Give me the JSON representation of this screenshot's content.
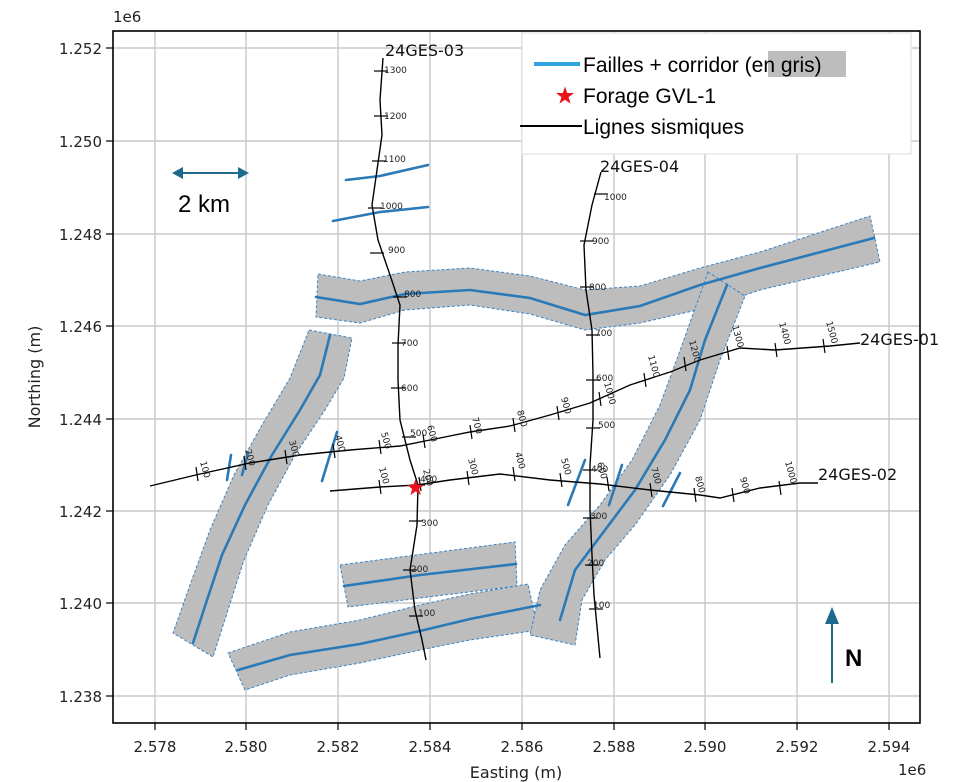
{
  "axes": {
    "x_label": "Easting (m)",
    "y_label": "Northing (m)",
    "x_multiplier": "1e6",
    "y_multiplier": "1e6",
    "x_ticks": [
      "2.578",
      "2.580",
      "2.582",
      "2.584",
      "2.586",
      "2.588",
      "2.590",
      "2.592",
      "2.594"
    ],
    "y_ticks": [
      "1.252",
      "1.250",
      "1.248",
      "1.246",
      "1.244",
      "1.242",
      "1.240",
      "1.238"
    ],
    "x_range_m": [
      2576900,
      2594500
    ],
    "y_range_m": [
      1237300,
      1252600
    ]
  },
  "legend": {
    "faults_label": "Failles + corridor",
    "faults_label_grey": "(en gris)",
    "well_label": "Forage GVL-1",
    "lines_label": "Lignes sismiques",
    "fault_color": "#2a7ab8",
    "corridor_color": "#bdbdbd",
    "well_color": "#e8141b"
  },
  "scale_bar": {
    "label": "2 km"
  },
  "north_arrow": {
    "label": "N"
  },
  "seismic_lines": [
    {
      "name": "24GES-03",
      "shots": [
        "1300",
        "1200",
        "1100",
        "1000",
        "900",
        "800",
        "700",
        "600",
        "500",
        "400",
        "300",
        "200",
        "100"
      ]
    },
    {
      "name": "24GES-04",
      "shots": [
        "1000",
        "900",
        "800",
        "700",
        "600",
        "500",
        "400",
        "300",
        "200",
        "100"
      ]
    },
    {
      "name": "24GES-01",
      "shots": [
        "100",
        "200",
        "300",
        "400",
        "500",
        "600",
        "700",
        "800",
        "900",
        "1000",
        "1100",
        "1200",
        "1300",
        "1400",
        "1500"
      ]
    },
    {
      "name": "24GES-02",
      "shots": [
        "100",
        "200",
        "300",
        "400",
        "500",
        "600",
        "700",
        "800",
        "900",
        "1000"
      ]
    }
  ],
  "well": {
    "name": "GVL-1",
    "easting": 2583500,
    "northing": 1242500
  }
}
